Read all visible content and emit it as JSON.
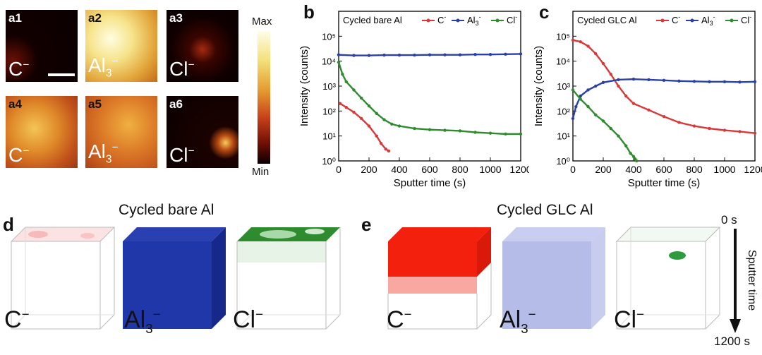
{
  "maps": {
    "tiles": [
      {
        "tag": "a1",
        "ion": "C",
        "charge": "−"
      },
      {
        "tag": "a2",
        "ion": "Al",
        "sub": "3",
        "charge": "−"
      },
      {
        "tag": "a3",
        "ion": "Cl",
        "charge": "−"
      },
      {
        "tag": "a4",
        "ion": "C",
        "charge": "−"
      },
      {
        "tag": "a5",
        "ion": "Al",
        "sub": "3",
        "charge": "−"
      },
      {
        "tag": "a6",
        "ion": "Cl",
        "charge": "−"
      }
    ],
    "colorbar": {
      "max": "Max",
      "min": "Min"
    }
  },
  "panels": {
    "b": "b",
    "c": "c",
    "d": "d",
    "e": "e"
  },
  "chart_data": [
    {
      "type": "line",
      "panel": "b",
      "title": "Cycled bare Al",
      "xlabel": "Sputter time (s)",
      "ylabel": "Intensity (counts)",
      "xlim": [
        0,
        1200
      ],
      "ylim_log10": [
        0,
        6
      ],
      "xticks": [
        "0",
        "200",
        "400",
        "600",
        "800",
        "1000",
        "1200"
      ],
      "yticks": [
        "10⁰",
        "10¹",
        "10²",
        "10³",
        "10⁴",
        "10⁵"
      ],
      "legend": [
        {
          "name": "C",
          "sup": "-",
          "color": "#d93838"
        },
        {
          "name": "Al",
          "sub": "3",
          "sup": "-",
          "color": "#2a3fa8"
        },
        {
          "name": "Cl",
          "sup": "-",
          "color": "#2e8b2e"
        }
      ],
      "series": [
        {
          "name": "C⁻",
          "color": "#d93838",
          "x": [
            10,
            50,
            100,
            150,
            200,
            250,
            280,
            310,
            330
          ],
          "y": [
            200,
            140,
            90,
            50,
            25,
            10,
            5,
            3,
            2.5
          ]
        },
        {
          "name": "Al₃⁻",
          "color": "#2a3fa8",
          "x": [
            0,
            100,
            200,
            300,
            400,
            500,
            600,
            700,
            800,
            900,
            1000,
            1100,
            1200
          ],
          "y": [
            18000,
            17000,
            17000,
            17500,
            17500,
            17500,
            18000,
            18000,
            18000,
            18500,
            18500,
            19000,
            19500
          ]
        },
        {
          "name": "Cl⁻",
          "color": "#2e8b2e",
          "x": [
            0,
            25,
            50,
            100,
            150,
            200,
            250,
            300,
            350,
            400,
            500,
            600,
            700,
            800,
            900,
            1000,
            1100,
            1200
          ],
          "y": [
            9000,
            3000,
            1500,
            700,
            330,
            160,
            80,
            45,
            30,
            25,
            20,
            18,
            17,
            16,
            14,
            13,
            12,
            12
          ]
        }
      ]
    },
    {
      "type": "line",
      "panel": "c",
      "title": "Cycled GLC Al",
      "xlabel": "Sputter time (s)",
      "ylabel": "Intensity (counts)",
      "xlim": [
        0,
        1200
      ],
      "ylim_log10": [
        0,
        6
      ],
      "xticks": [
        "0",
        "200",
        "400",
        "600",
        "800",
        "1000",
        "1200"
      ],
      "yticks": [
        "10⁰",
        "10¹",
        "10²",
        "10³",
        "10⁴",
        "10⁵"
      ],
      "legend": [
        {
          "name": "C",
          "sup": "-",
          "color": "#d93838"
        },
        {
          "name": "Al",
          "sub": "3",
          "sup": "-",
          "color": "#2a3fa8"
        },
        {
          "name": "Cl",
          "sup": "-",
          "color": "#2e8b2e"
        }
      ],
      "series": [
        {
          "name": "C⁻",
          "color": "#d93838",
          "x": [
            0,
            50,
            100,
            150,
            200,
            250,
            300,
            350,
            400,
            500,
            600,
            700,
            800,
            900,
            1000,
            1100,
            1200
          ],
          "y": [
            70000,
            60000,
            40000,
            20000,
            8000,
            3000,
            1000,
            400,
            200,
            110,
            60,
            35,
            25,
            20,
            17,
            15,
            13
          ]
        },
        {
          "name": "Al₃⁻",
          "color": "#2a3fa8",
          "x": [
            0,
            20,
            50,
            100,
            150,
            200,
            300,
            400,
            500,
            600,
            700,
            800,
            900,
            1000,
            1100,
            1200
          ],
          "y": [
            50,
            150,
            400,
            700,
            1000,
            1400,
            1800,
            1900,
            1800,
            1700,
            1600,
            1550,
            1500,
            1500,
            1450,
            1500
          ]
        },
        {
          "name": "Cl⁻",
          "color": "#2e8b2e",
          "x": [
            0,
            50,
            100,
            150,
            200,
            250,
            300,
            350,
            380,
            400,
            410,
            420
          ],
          "y": [
            700,
            300,
            150,
            70,
            40,
            20,
            10,
            4,
            2,
            1.5,
            1.2,
            1
          ]
        }
      ]
    }
  ],
  "cubes": {
    "bare_title": "Cycled bare Al",
    "glc_title": "Cycled GLC Al",
    "labels": [
      {
        "ion": "C",
        "charge": "−"
      },
      {
        "ion": "Al",
        "sub": "3",
        "charge": "−"
      },
      {
        "ion": "Cl",
        "charge": "−"
      },
      {
        "ion": "C",
        "charge": "−"
      },
      {
        "ion": "Al",
        "sub": "3",
        "charge": "−"
      },
      {
        "ion": "Cl",
        "charge": "−"
      }
    ],
    "arrow": {
      "start": "0 s",
      "end": "1200 s",
      "axis": "Sputter time"
    }
  }
}
